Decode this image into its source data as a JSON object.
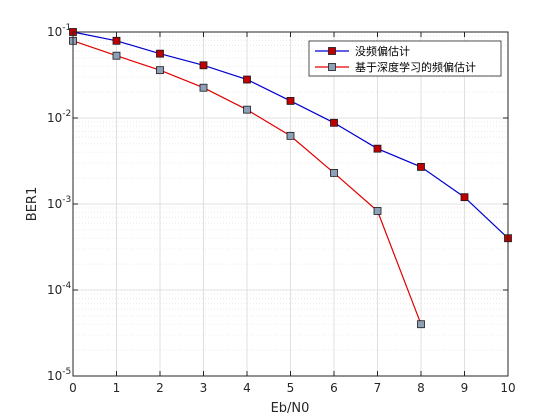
{
  "chart_data": {
    "type": "line",
    "title": "",
    "xlabel": "Eb/N0",
    "ylabel": "BER1",
    "x_ticks": [
      "0",
      "1",
      "2",
      "3",
      "4",
      "5",
      "6",
      "7",
      "8",
      "9",
      "10"
    ],
    "xlim": [
      0,
      10
    ],
    "ylim": [
      1e-05,
      0.1
    ],
    "yscale": "log",
    "y_ticks": [
      {
        "base": "10",
        "exp": "-5",
        "value": 1e-05
      },
      {
        "base": "10",
        "exp": "-4",
        "value": 0.0001
      },
      {
        "base": "10",
        "exp": "-3",
        "value": 0.001
      },
      {
        "base": "10",
        "exp": "-2",
        "value": 0.01
      },
      {
        "base": "10",
        "exp": "-1",
        "value": 0.1
      }
    ],
    "grid": true,
    "legend_position": "top-right",
    "series": [
      {
        "name": "没频偏估计",
        "color": "#0000cd",
        "marker_color": "#c00000",
        "x": [
          0,
          1,
          2,
          3,
          4,
          5,
          6,
          7,
          8,
          9,
          10
        ],
        "y": [
          0.1,
          0.079,
          0.056,
          0.041,
          0.028,
          0.0158,
          0.0088,
          0.0044,
          0.0027,
          0.0012,
          0.0004
        ]
      },
      {
        "name": "基于深度学习的频偏估计",
        "color": "#e00000",
        "marker_color": "#8ea0b8",
        "x": [
          0,
          1,
          2,
          3,
          4,
          5,
          6,
          7,
          8
        ],
        "y": [
          0.079,
          0.053,
          0.036,
          0.0225,
          0.0125,
          0.0062,
          0.0023,
          0.00083,
          4e-05
        ]
      }
    ]
  }
}
